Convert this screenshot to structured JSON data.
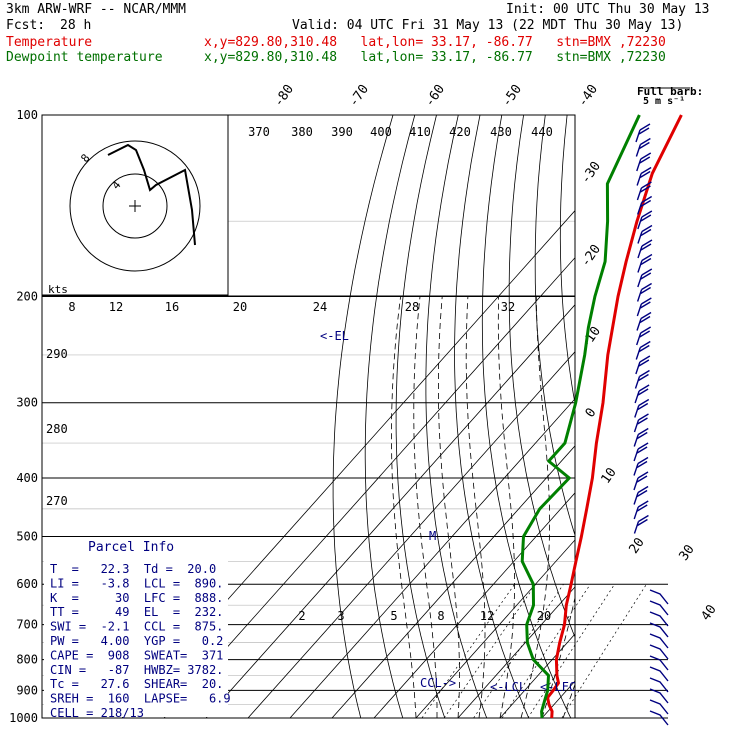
{
  "header": {
    "model": "3km ARW-WRF -- NCAR/MMM",
    "init": "Init: 00 UTC Thu 30 May 13",
    "fcst_label": "Fcst:",
    "fcst_value": "28 h",
    "valid": "Valid: 04 UTC Fri 31 May 13 (22 MDT Thu 30 May 13)",
    "temp_label": "Temperature",
    "temp_loc": "x,y=829.80,310.48   lat,lon= 33.17, -86.77   stn=BMX ,72230",
    "dew_label": "Dewpoint temperature",
    "dew_loc": "x,y=829.80,310.48   lat,lon= 33.17, -86.77   stn=BMX ,72230"
  },
  "colors": {
    "temperature": "#e00000",
    "dewpoint": "#008000",
    "text_blue": "#000080",
    "grid": "#000000"
  },
  "hodograph": {
    "label": "kts",
    "ring_labels": [
      "8",
      "4"
    ],
    "points_kts": [
      [
        6,
        -4
      ],
      [
        5,
        -1
      ],
      [
        3,
        2
      ],
      [
        4,
        5
      ],
      [
        8,
        6
      ],
      [
        12,
        9
      ],
      [
        13,
        12
      ]
    ]
  },
  "wind_barbs": {
    "title": "Full barb:",
    "subtitle": "5 m s⁻¹"
  },
  "labels": {
    "el": "<-EL",
    "m": "M",
    "ccl": "CCL->",
    "lcl": "<-LCL",
    "lfc": "<-LFC"
  },
  "parcel_info": {
    "title": "Parcel Info",
    "rows": [
      "T  =   22.3  Td =  20.0",
      "LI =   -3.8  LCL =  890.",
      "K  =     30  LFC =  888.",
      "TT =     49  EL  =  232.",
      "SWI =  -2.1  CCL =  875.",
      "PW =   4.00  YGP =   0.2",
      "CAPE =  908  SWEAT=  371",
      "CIN =   -87  HWBZ= 3782.",
      "Tc =   27.6  SHEAR=  20.",
      "SREH =  160  LAPSE=   6.9",
      "CELL = 218/13"
    ]
  },
  "chart_data": {
    "type": "line",
    "title": "",
    "xlabel": "",
    "ylabel": "",
    "pressure_ticks": [
      100,
      200,
      300,
      400,
      500,
      600,
      700,
      800,
      900,
      1000
    ],
    "pressure_ticks_text": [
      "100",
      "200",
      "300",
      "400",
      "500",
      "600",
      "700",
      "800",
      "900",
      "1000"
    ],
    "isotherm_ticks": [
      -80,
      -70,
      -60,
      -50,
      -40,
      -30,
      -20,
      -10,
      0,
      10,
      20,
      30,
      40
    ],
    "isotherm_ticks_text": [
      "-80",
      "-70",
      "-60",
      "-50",
      "-40",
      "-30",
      "-20",
      "-10",
      "0",
      "10",
      "20",
      "30",
      "40"
    ],
    "theta_e_labels": [
      "370",
      "380",
      "390",
      "400",
      "410",
      "420",
      "430",
      "440"
    ],
    "theta_labels": [
      "290",
      "280",
      "270"
    ],
    "speed_labels": [
      "8",
      "12",
      "16",
      "20",
      "24",
      "28",
      "32"
    ],
    "mixing_ratio_labels": [
      "2",
      "3",
      "5",
      "8",
      "12",
      "20"
    ],
    "series": [
      {
        "name": "Temperature",
        "points": [
          [
            1000,
            22.3
          ],
          [
            975,
            21.0
          ],
          [
            950,
            18.8
          ],
          [
            925,
            17.0
          ],
          [
            900,
            16.8
          ],
          [
            875,
            16.5
          ],
          [
            850,
            14.5
          ],
          [
            800,
            11.0
          ],
          [
            750,
            8.2
          ],
          [
            700,
            5.5
          ],
          [
            650,
            1.8
          ],
          [
            600,
            -1.5
          ],
          [
            550,
            -5.2
          ],
          [
            500,
            -9.2
          ],
          [
            450,
            -13.8
          ],
          [
            400,
            -19.0
          ],
          [
            350,
            -25.5
          ],
          [
            300,
            -32.5
          ],
          [
            250,
            -41.5
          ],
          [
            200,
            -51.5
          ],
          [
            175,
            -57.0
          ],
          [
            150,
            -63.0
          ],
          [
            125,
            -69.5
          ],
          [
            100,
            -75.0
          ]
        ]
      },
      {
        "name": "Dewpoint temperature",
        "points": [
          [
            1000,
            20.0
          ],
          [
            975,
            18.5
          ],
          [
            950,
            17.5
          ],
          [
            925,
            16.5
          ],
          [
            900,
            15.5
          ],
          [
            850,
            12.5
          ],
          [
            800,
            5.5
          ],
          [
            750,
            0.5
          ],
          [
            700,
            -3.5
          ],
          [
            650,
            -6.0
          ],
          [
            600,
            -10.5
          ],
          [
            550,
            -18.0
          ],
          [
            500,
            -23.0
          ],
          [
            450,
            -25.0
          ],
          [
            400,
            -24.5
          ],
          [
            375,
            -33.0
          ],
          [
            350,
            -33.0
          ],
          [
            300,
            -39.0
          ],
          [
            250,
            -47.0
          ],
          [
            225,
            -52.0
          ],
          [
            200,
            -57.0
          ],
          [
            175,
            -62.0
          ],
          [
            150,
            -70.0
          ],
          [
            130,
            -78.0
          ],
          [
            100,
            -85.0
          ]
        ]
      }
    ],
    "ylim": [
      100,
      1000
    ],
    "xlim": [
      -40,
      45
    ],
    "yscale": "log",
    "grid": true,
    "legend": "top-left"
  }
}
